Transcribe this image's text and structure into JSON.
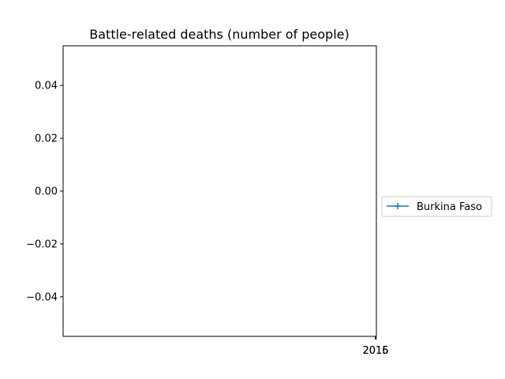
{
  "chart_data": {
    "type": "line",
    "title": "Battle-related deaths (number of people)",
    "xlabel": "",
    "ylabel": "",
    "x_ticks": [
      "2015",
      "2016"
    ],
    "y_ticks": [
      0.04,
      0.02,
      0.0,
      -0.02,
      -0.04
    ],
    "y_tick_labels": [
      "0.04",
      "0.02",
      "0.00",
      "−0.02",
      "−0.04"
    ],
    "ylim": [
      -0.055,
      0.055
    ],
    "x": [
      2015,
      2016
    ],
    "series": [
      {
        "name": "Burkina Faso",
        "values": [
          null,
          null
        ],
        "color": "#1f77b4",
        "marker": "plus"
      }
    ],
    "legend_position": "outside-right",
    "grid": false
  }
}
